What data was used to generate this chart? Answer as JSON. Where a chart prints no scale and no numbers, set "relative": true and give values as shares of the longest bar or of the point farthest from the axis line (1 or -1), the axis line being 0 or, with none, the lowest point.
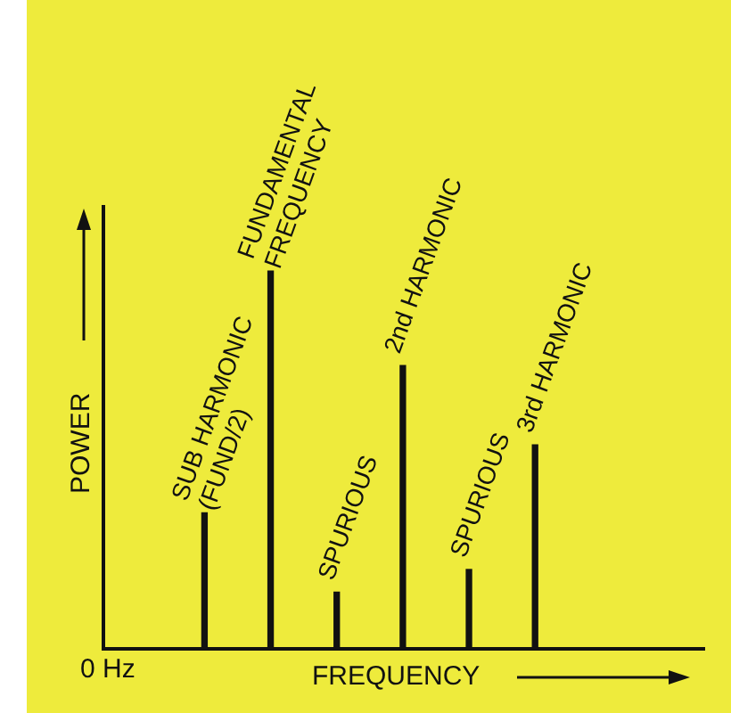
{
  "chart_data": {
    "type": "bar",
    "relative": true,
    "xlabel": "FREQUENCY",
    "ylabel": "POWER",
    "categories": [
      null,
      null,
      null,
      null,
      null,
      null
    ],
    "values": [
      0.36,
      1,
      0.15,
      0.75,
      0.21,
      0.54
    ],
    "color": "#111111",
    "annotations": [
      "0 Hz",
      "SUB HARMONIC\n(FUND/2)",
      "FUNDAMENTAL\nFREQUENCY",
      "SPURIOUS",
      "2nd HARMONIC",
      "SPURIOUS",
      "3rd HARMONIC"
    ],
    "grid": false,
    "legend": false
  }
}
